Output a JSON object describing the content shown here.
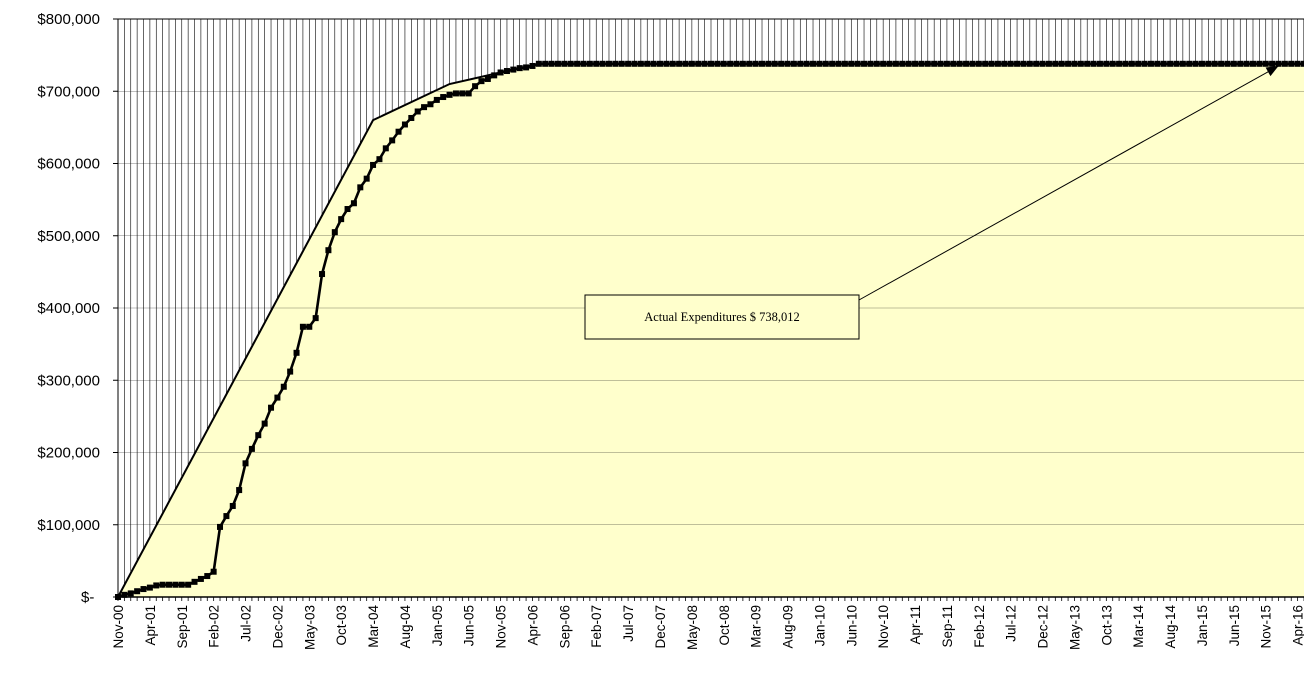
{
  "chart_data": {
    "type": "line",
    "title": "",
    "xlabel": "",
    "ylabel": "",
    "ylim": [
      0,
      800000
    ],
    "yticks": [
      "$-",
      "$100,000",
      "$200,000",
      "$300,000",
      "$400,000",
      "$500,000",
      "$600,000",
      "$700,000",
      "$800,000"
    ],
    "x_tick_labels": [
      "Nov-00",
      "Apr-01",
      "Sep-01",
      "Feb-02",
      "Jul-02",
      "Dec-02",
      "May-03",
      "Oct-03",
      "Mar-04",
      "Aug-04",
      "Jan-05",
      "Jun-05",
      "Nov-05",
      "Apr-06",
      "Sep-06",
      "Feb-07",
      "Jul-07",
      "Dec-07",
      "May-08",
      "Oct-08",
      "Mar-09",
      "Aug-09",
      "Jan-10",
      "Jun-10",
      "Nov-10",
      "Apr-11",
      "Sep-11",
      "Feb-12",
      "Jul-12",
      "Dec-12",
      "May-13",
      "Oct-13",
      "Mar-14",
      "Aug-14",
      "Jan-15",
      "Jun-15",
      "Nov-15",
      "Apr-16"
    ],
    "grid": "vertical-monthly",
    "colors": {
      "area_fill": "#ffffcc",
      "plot_background": "#ffffff",
      "line": "#000000",
      "grid": "#000000"
    },
    "series": [
      {
        "kind": "area-line",
        "note_x_unit": "month index from Nov-00",
        "x": [
          0,
          40,
          52,
          66,
          186
        ],
        "values": [
          0,
          660000,
          710000,
          738012,
          738012
        ]
      },
      {
        "kind": "line-markers",
        "x": [
          0,
          1,
          2,
          3,
          4,
          5,
          6,
          7,
          8,
          9,
          10,
          11,
          12,
          13,
          14,
          15,
          16,
          17,
          18,
          19,
          20,
          21,
          22,
          23,
          24,
          25,
          26,
          27,
          28,
          29,
          30,
          31,
          32,
          33,
          34,
          35,
          36,
          37,
          38,
          39,
          40,
          41,
          42,
          43,
          44,
          45,
          46,
          47,
          48,
          49,
          50,
          51,
          52,
          53,
          54,
          55,
          56,
          57,
          58,
          59,
          60,
          61,
          62,
          63,
          64,
          65,
          66,
          186
        ],
        "values": [
          0,
          3000,
          5000,
          8000,
          11000,
          13000,
          16000,
          17000,
          17000,
          17000,
          17000,
          17000,
          21000,
          25000,
          29000,
          35000,
          97000,
          112000,
          126000,
          148000,
          185000,
          205000,
          224000,
          240000,
          262000,
          276000,
          291000,
          312000,
          338000,
          374000,
          374000,
          386000,
          447000,
          480000,
          505000,
          523000,
          537000,
          545000,
          567000,
          579000,
          598000,
          606000,
          621000,
          632000,
          644000,
          654000,
          663000,
          672000,
          678000,
          682000,
          688000,
          692000,
          695000,
          697000,
          697000,
          697000,
          707000,
          714000,
          717000,
          722000,
          726000,
          728000,
          730000,
          732000,
          733000,
          735000,
          738012,
          738012
        ]
      }
    ],
    "annotations": [
      {
        "text": "Actual Expenditures $ 738,012",
        "arrow_to": [
          182,
          735000
        ]
      }
    ]
  }
}
